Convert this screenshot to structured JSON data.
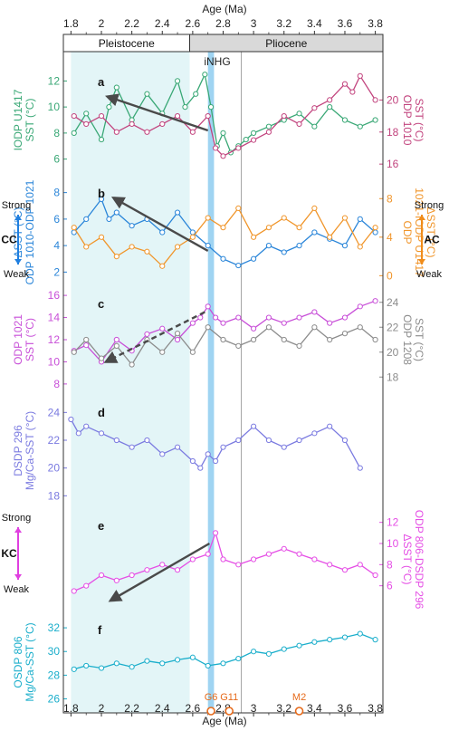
{
  "chart_data": {
    "type": "line",
    "x_axis": {
      "label": "Age (Ma)",
      "range": [
        1.75,
        3.85
      ],
      "ticks": [
        "1.8",
        "2",
        "2.2",
        "2.4",
        "2.6",
        "2.8",
        "3",
        "3.2",
        "3.4",
        "3.6",
        "3.8"
      ],
      "tick_values": [
        1.8,
        2.0,
        2.2,
        2.4,
        2.6,
        2.8,
        3.0,
        3.2,
        3.4,
        3.6,
        3.8
      ]
    },
    "epochs": [
      {
        "name": "Pleistocene",
        "from": 1.75,
        "to": 2.58,
        "color": "#ffffff"
      },
      {
        "name": "Pliocene",
        "from": 2.58,
        "to": 3.85,
        "color": "#d9d9d9"
      }
    ],
    "shaded_interval": {
      "from": 1.8,
      "to": 2.58,
      "color": "#e3f5f7"
    },
    "inhg": {
      "label": "iNHG",
      "from": 2.7,
      "to": 2.74,
      "color": "#9fd4f2"
    },
    "vline_age": 2.92,
    "glacial_markers": [
      {
        "label": "G6",
        "age": 2.72
      },
      {
        "label": "G11",
        "age": 2.84
      },
      {
        "label": "M2",
        "age": 3.3
      }
    ],
    "panels": [
      {
        "letter": "a",
        "left_axis": {
          "label_lines": [
            "IODP U1417",
            "SST (°C)"
          ],
          "ticks": [
            "6",
            "8",
            "10",
            "12"
          ],
          "tick_values": [
            6,
            8,
            10,
            12
          ],
          "range": [
            5,
            13
          ],
          "color": "#3aa876"
        },
        "right_axis": {
          "label_lines": [
            "ODP 1010",
            "SST (°C)"
          ],
          "ticks": [
            "16",
            "18",
            "20"
          ],
          "tick_values": [
            16,
            18,
            20
          ],
          "range": [
            15.5,
            22
          ],
          "color": "#c2447e"
        },
        "series": [
          {
            "axis": "left",
            "color": "#3aa876",
            "x": [
              1.82,
              1.9,
              2.0,
              2.05,
              2.1,
              2.2,
              2.3,
              2.4,
              2.5,
              2.55,
              2.62,
              2.68,
              2.72,
              2.76,
              2.8,
              2.85,
              2.9,
              2.95,
              3.0,
              3.1,
              3.2,
              3.3,
              3.4,
              3.5,
              3.6,
              3.7,
              3.8
            ],
            "y": [
              8,
              9.5,
              7.5,
              10,
              11.5,
              9,
              11,
              9.5,
              12,
              10,
              11,
              12.5,
              10,
              7,
              8,
              6.5,
              7,
              7.5,
              8,
              8.5,
              9,
              9.5,
              8.5,
              10,
              9,
              8.5,
              9
            ]
          },
          {
            "axis": "right",
            "color": "#c2447e",
            "x": [
              1.82,
              1.9,
              2.0,
              2.1,
              2.2,
              2.3,
              2.4,
              2.5,
              2.6,
              2.7,
              2.75,
              2.8,
              2.9,
              3.0,
              3.1,
              3.2,
              3.3,
              3.4,
              3.5,
              3.6,
              3.65,
              3.7,
              3.8
            ],
            "y": [
              19,
              18.5,
              19,
              18,
              18.5,
              18,
              18.5,
              19,
              18,
              19,
              17,
              16.5,
              17,
              17.5,
              18,
              19,
              18.5,
              19.5,
              20,
              21,
              20.5,
              21.5,
              20
            ]
          }
        ],
        "arrow": {
          "from": [
            2.7,
            8.2
          ],
          "to": [
            2.04,
            10.8
          ],
          "axis": "left",
          "style": "solid"
        }
      },
      {
        "letter": "b",
        "left_axis": {
          "label_lines": [
            "ΔSST (°C)",
            "ODP 1010-ODP 1021"
          ],
          "ticks": [
            "2",
            "4",
            "6",
            "8"
          ],
          "tick_values": [
            2,
            4,
            6,
            8
          ],
          "range": [
            1,
            9
          ],
          "color": "#2b86d9"
        },
        "right_axis": {
          "label_lines": [
            "ODP",
            "1021-IODP U1417",
            "ΔSST (°C)"
          ],
          "ticks": [
            "0",
            "4",
            "8"
          ],
          "tick_values": [
            0,
            4,
            8
          ],
          "range": [
            -1,
            10
          ],
          "color": "#f0952a"
        },
        "series": [
          {
            "axis": "left",
            "color": "#2b86d9",
            "x": [
              1.82,
              1.9,
              2.0,
              2.05,
              2.1,
              2.2,
              2.3,
              2.4,
              2.5,
              2.6,
              2.7,
              2.8,
              2.9,
              3.0,
              3.1,
              3.2,
              3.3,
              3.4,
              3.5,
              3.6,
              3.7,
              3.8
            ],
            "y": [
              5,
              6,
              7.5,
              6,
              6.5,
              5.5,
              6,
              5,
              6.5,
              5,
              4,
              3,
              2.5,
              3,
              4,
              3.5,
              4,
              5,
              4.5,
              4,
              6,
              5
            ]
          },
          {
            "axis": "right",
            "color": "#f0952a",
            "x": [
              1.82,
              1.9,
              2.0,
              2.1,
              2.2,
              2.3,
              2.4,
              2.5,
              2.6,
              2.7,
              2.8,
              2.9,
              3.0,
              3.1,
              3.2,
              3.3,
              3.4,
              3.5,
              3.6,
              3.7,
              3.8
            ],
            "y": [
              5,
              3,
              4,
              2,
              3,
              2.5,
              1,
              3,
              4,
              6,
              5,
              7,
              4,
              5,
              6,
              5,
              7,
              4,
              6,
              3,
              5
            ]
          }
        ],
        "arrow": {
          "from": [
            2.7,
            3.6
          ],
          "to": [
            2.08,
            7.6
          ],
          "axis": "left",
          "style": "solid"
        }
      },
      {
        "letter": "c",
        "left_axis": {
          "label_lines": [
            "ODP 1021",
            "SST (°C)"
          ],
          "ticks": [
            "8",
            "10",
            "12",
            "14",
            "16"
          ],
          "tick_values": [
            8,
            10,
            12,
            14,
            16
          ],
          "range": [
            7.5,
            16.5
          ],
          "color": "#c84fd8"
        },
        "right_axis": {
          "label_lines": [
            "ODP 1208",
            "SST (°C)"
          ],
          "ticks": [
            "18",
            "20",
            "22",
            "24"
          ],
          "tick_values": [
            18,
            20,
            22,
            24
          ],
          "range": [
            17,
            25
          ],
          "color": "#8c8c8c"
        },
        "series": [
          {
            "axis": "left",
            "color": "#c84fd8",
            "x": [
              1.82,
              1.9,
              2.0,
              2.1,
              2.2,
              2.3,
              2.4,
              2.5,
              2.6,
              2.65,
              2.7,
              2.75,
              2.8,
              2.9,
              3.0,
              3.1,
              3.2,
              3.3,
              3.4,
              3.5,
              3.6,
              3.7,
              3.8
            ],
            "y": [
              11,
              11.5,
              10,
              12,
              11,
              12.5,
              13,
              12,
              13.5,
              14,
              15,
              14,
              13.5,
              14,
              13,
              14,
              13.5,
              14,
              14.5,
              13.5,
              14,
              15,
              15.5
            ]
          },
          {
            "axis": "right",
            "color": "#8c8c8c",
            "x": [
              1.82,
              1.9,
              2.0,
              2.1,
              2.2,
              2.3,
              2.4,
              2.5,
              2.6,
              2.7,
              2.8,
              2.9,
              3.0,
              3.1,
              3.2,
              3.3,
              3.4,
              3.5,
              3.6,
              3.7,
              3.8
            ],
            "y": [
              20,
              21,
              19.5,
              20.5,
              19,
              21,
              20,
              21.5,
              20,
              22,
              21,
              20.5,
              21,
              22,
              21,
              20.5,
              22,
              21,
              21.5,
              22,
              21
            ]
          }
        ],
        "arrow": {
          "from": [
            2.68,
            14.5
          ],
          "to": [
            2.03,
            10.0
          ],
          "axis": "left",
          "style": "dashed"
        }
      },
      {
        "letter": "d",
        "left_axis": {
          "label_lines": [
            "DSDP 296",
            "Mg/Ca-SST (°C)"
          ],
          "ticks": [
            "18",
            "20",
            "22",
            "24"
          ],
          "tick_values": [
            18,
            20,
            22,
            24
          ],
          "range": [
            17.5,
            25
          ],
          "color": "#7a7ae0"
        },
        "right_axis": null,
        "series": [
          {
            "axis": "left",
            "color": "#7a7ae0",
            "x": [
              1.8,
              1.85,
              1.9,
              2.0,
              2.1,
              2.2,
              2.3,
              2.4,
              2.5,
              2.6,
              2.65,
              2.7,
              2.75,
              2.8,
              2.9,
              3.0,
              3.1,
              3.2,
              3.3,
              3.4,
              3.5,
              3.6,
              3.7
            ],
            "y": [
              23.5,
              22.5,
              23,
              22.5,
              22,
              21.5,
              22,
              21,
              21.5,
              20.5,
              20,
              21,
              20.5,
              21.5,
              22,
              23,
              22,
              21.5,
              22,
              22.5,
              23,
              22,
              20
            ]
          }
        ],
        "arrow": null
      },
      {
        "letter": "e",
        "left_axis": null,
        "right_axis": {
          "label_lines": [
            "ΔSST (°C)",
            "ODP 806-DSDP 296"
          ],
          "ticks": [
            "6",
            "8",
            "10",
            "12"
          ],
          "tick_values": [
            6,
            8,
            10,
            12
          ],
          "range": [
            4,
            13
          ],
          "color": "#e54ee5"
        },
        "series": [
          {
            "axis": "right",
            "color": "#e54ee5",
            "x": [
              1.82,
              1.9,
              2.0,
              2.1,
              2.2,
              2.3,
              2.4,
              2.5,
              2.6,
              2.7,
              2.75,
              2.8,
              2.9,
              3.0,
              3.1,
              3.2,
              3.3,
              3.4,
              3.5,
              3.6,
              3.7,
              3.8
            ],
            "y": [
              5.5,
              6,
              7,
              6.5,
              7,
              7.5,
              8,
              7.5,
              8.5,
              9,
              11,
              8.5,
              8,
              8.5,
              9,
              9.5,
              9,
              8.5,
              8,
              7.5,
              8,
              7
            ]
          }
        ],
        "arrow": {
          "from": [
            2.71,
            10.0
          ],
          "to": [
            2.06,
            4.6
          ],
          "axis": "right",
          "style": "solid"
        }
      },
      {
        "letter": "f",
        "left_axis": {
          "label_lines": [
            "OSDP 806",
            "Mg/Ca-SST (°C)"
          ],
          "ticks": [
            "26",
            "28",
            "30",
            "32"
          ],
          "tick_values": [
            26,
            28,
            30,
            32
          ],
          "range": [
            25.2,
            33
          ],
          "color": "#1aaecb"
        },
        "right_axis": null,
        "series": [
          {
            "axis": "left",
            "color": "#1aaecb",
            "x": [
              1.82,
              1.9,
              2.0,
              2.1,
              2.2,
              2.3,
              2.4,
              2.5,
              2.6,
              2.7,
              2.8,
              2.9,
              3.0,
              3.1,
              3.2,
              3.3,
              3.4,
              3.5,
              3.6,
              3.7,
              3.8
            ],
            "y": [
              28.5,
              28.8,
              28.6,
              29,
              28.7,
              29.2,
              29,
              29.3,
              29.5,
              28.8,
              29,
              29.4,
              30,
              29.8,
              30.2,
              30.5,
              30.8,
              31,
              31.2,
              31.5,
              31
            ]
          }
        ],
        "arrow": null
      }
    ],
    "side_labels": [
      {
        "id": "cc",
        "code": "CC",
        "strong": "Strong",
        "weak": "Weak",
        "color": "#1f7fe0"
      },
      {
        "id": "ac",
        "code": "AC",
        "strong": "Strong",
        "weak": "Weak",
        "color": "#f08c1a"
      },
      {
        "id": "kc",
        "code": "KC",
        "strong": "Strong",
        "weak": "Weak",
        "color": "#e040e0"
      }
    ]
  }
}
